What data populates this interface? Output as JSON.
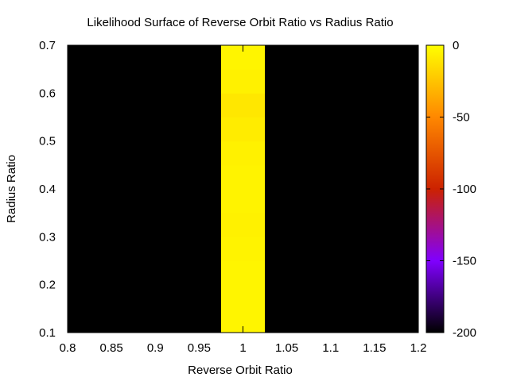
{
  "chart_data": {
    "type": "heatmap",
    "title": "Likelihood Surface of Reverse Orbit Ratio vs Radius Ratio",
    "xlabel": "Reverse Orbit Ratio",
    "ylabel": "Radius Ratio",
    "xlim": [
      0.8,
      1.2
    ],
    "ylim": [
      0.1,
      0.7
    ],
    "x_ticks": [
      "0.8",
      "0.85",
      "0.9",
      "0.95",
      "1",
      "1.05",
      "1.1",
      "1.15",
      "1.2"
    ],
    "y_ticks": [
      "0.1",
      "0.2",
      "0.3",
      "0.4",
      "0.5",
      "0.6",
      "0.7"
    ],
    "colorbar": {
      "range": [
        -200,
        0
      ],
      "ticks": [
        "0",
        "-50",
        "-100",
        "-150",
        "-200"
      ],
      "palette": [
        "#000000",
        "#8000ff",
        "#cc2200",
        "#ff8800",
        "#ffff00"
      ]
    },
    "grid": false,
    "background_value": -200,
    "cells": [
      {
        "x": [
          0.975,
          1.025
        ],
        "y": [
          0.1,
          0.15
        ],
        "value": -4
      },
      {
        "x": [
          0.975,
          1.025
        ],
        "y": [
          0.15,
          0.2
        ],
        "value": -4
      },
      {
        "x": [
          0.975,
          1.025
        ],
        "y": [
          0.2,
          0.25
        ],
        "value": -4
      },
      {
        "x": [
          0.975,
          1.025
        ],
        "y": [
          0.25,
          0.3
        ],
        "value": -5
      },
      {
        "x": [
          0.975,
          1.025
        ],
        "y": [
          0.3,
          0.35
        ],
        "value": -6
      },
      {
        "x": [
          0.975,
          1.025
        ],
        "y": [
          0.35,
          0.4
        ],
        "value": -5
      },
      {
        "x": [
          0.975,
          1.025
        ],
        "y": [
          0.4,
          0.45
        ],
        "value": -5
      },
      {
        "x": [
          0.975,
          1.025
        ],
        "y": [
          0.45,
          0.5
        ],
        "value": -6
      },
      {
        "x": [
          0.975,
          1.025
        ],
        "y": [
          0.5,
          0.55
        ],
        "value": -8
      },
      {
        "x": [
          0.975,
          1.025
        ],
        "y": [
          0.55,
          0.6
        ],
        "value": -10
      },
      {
        "x": [
          0.975,
          1.025
        ],
        "y": [
          0.6,
          0.65
        ],
        "value": -6
      },
      {
        "x": [
          0.975,
          1.025
        ],
        "y": [
          0.65,
          0.7
        ],
        "value": -4
      }
    ]
  }
}
